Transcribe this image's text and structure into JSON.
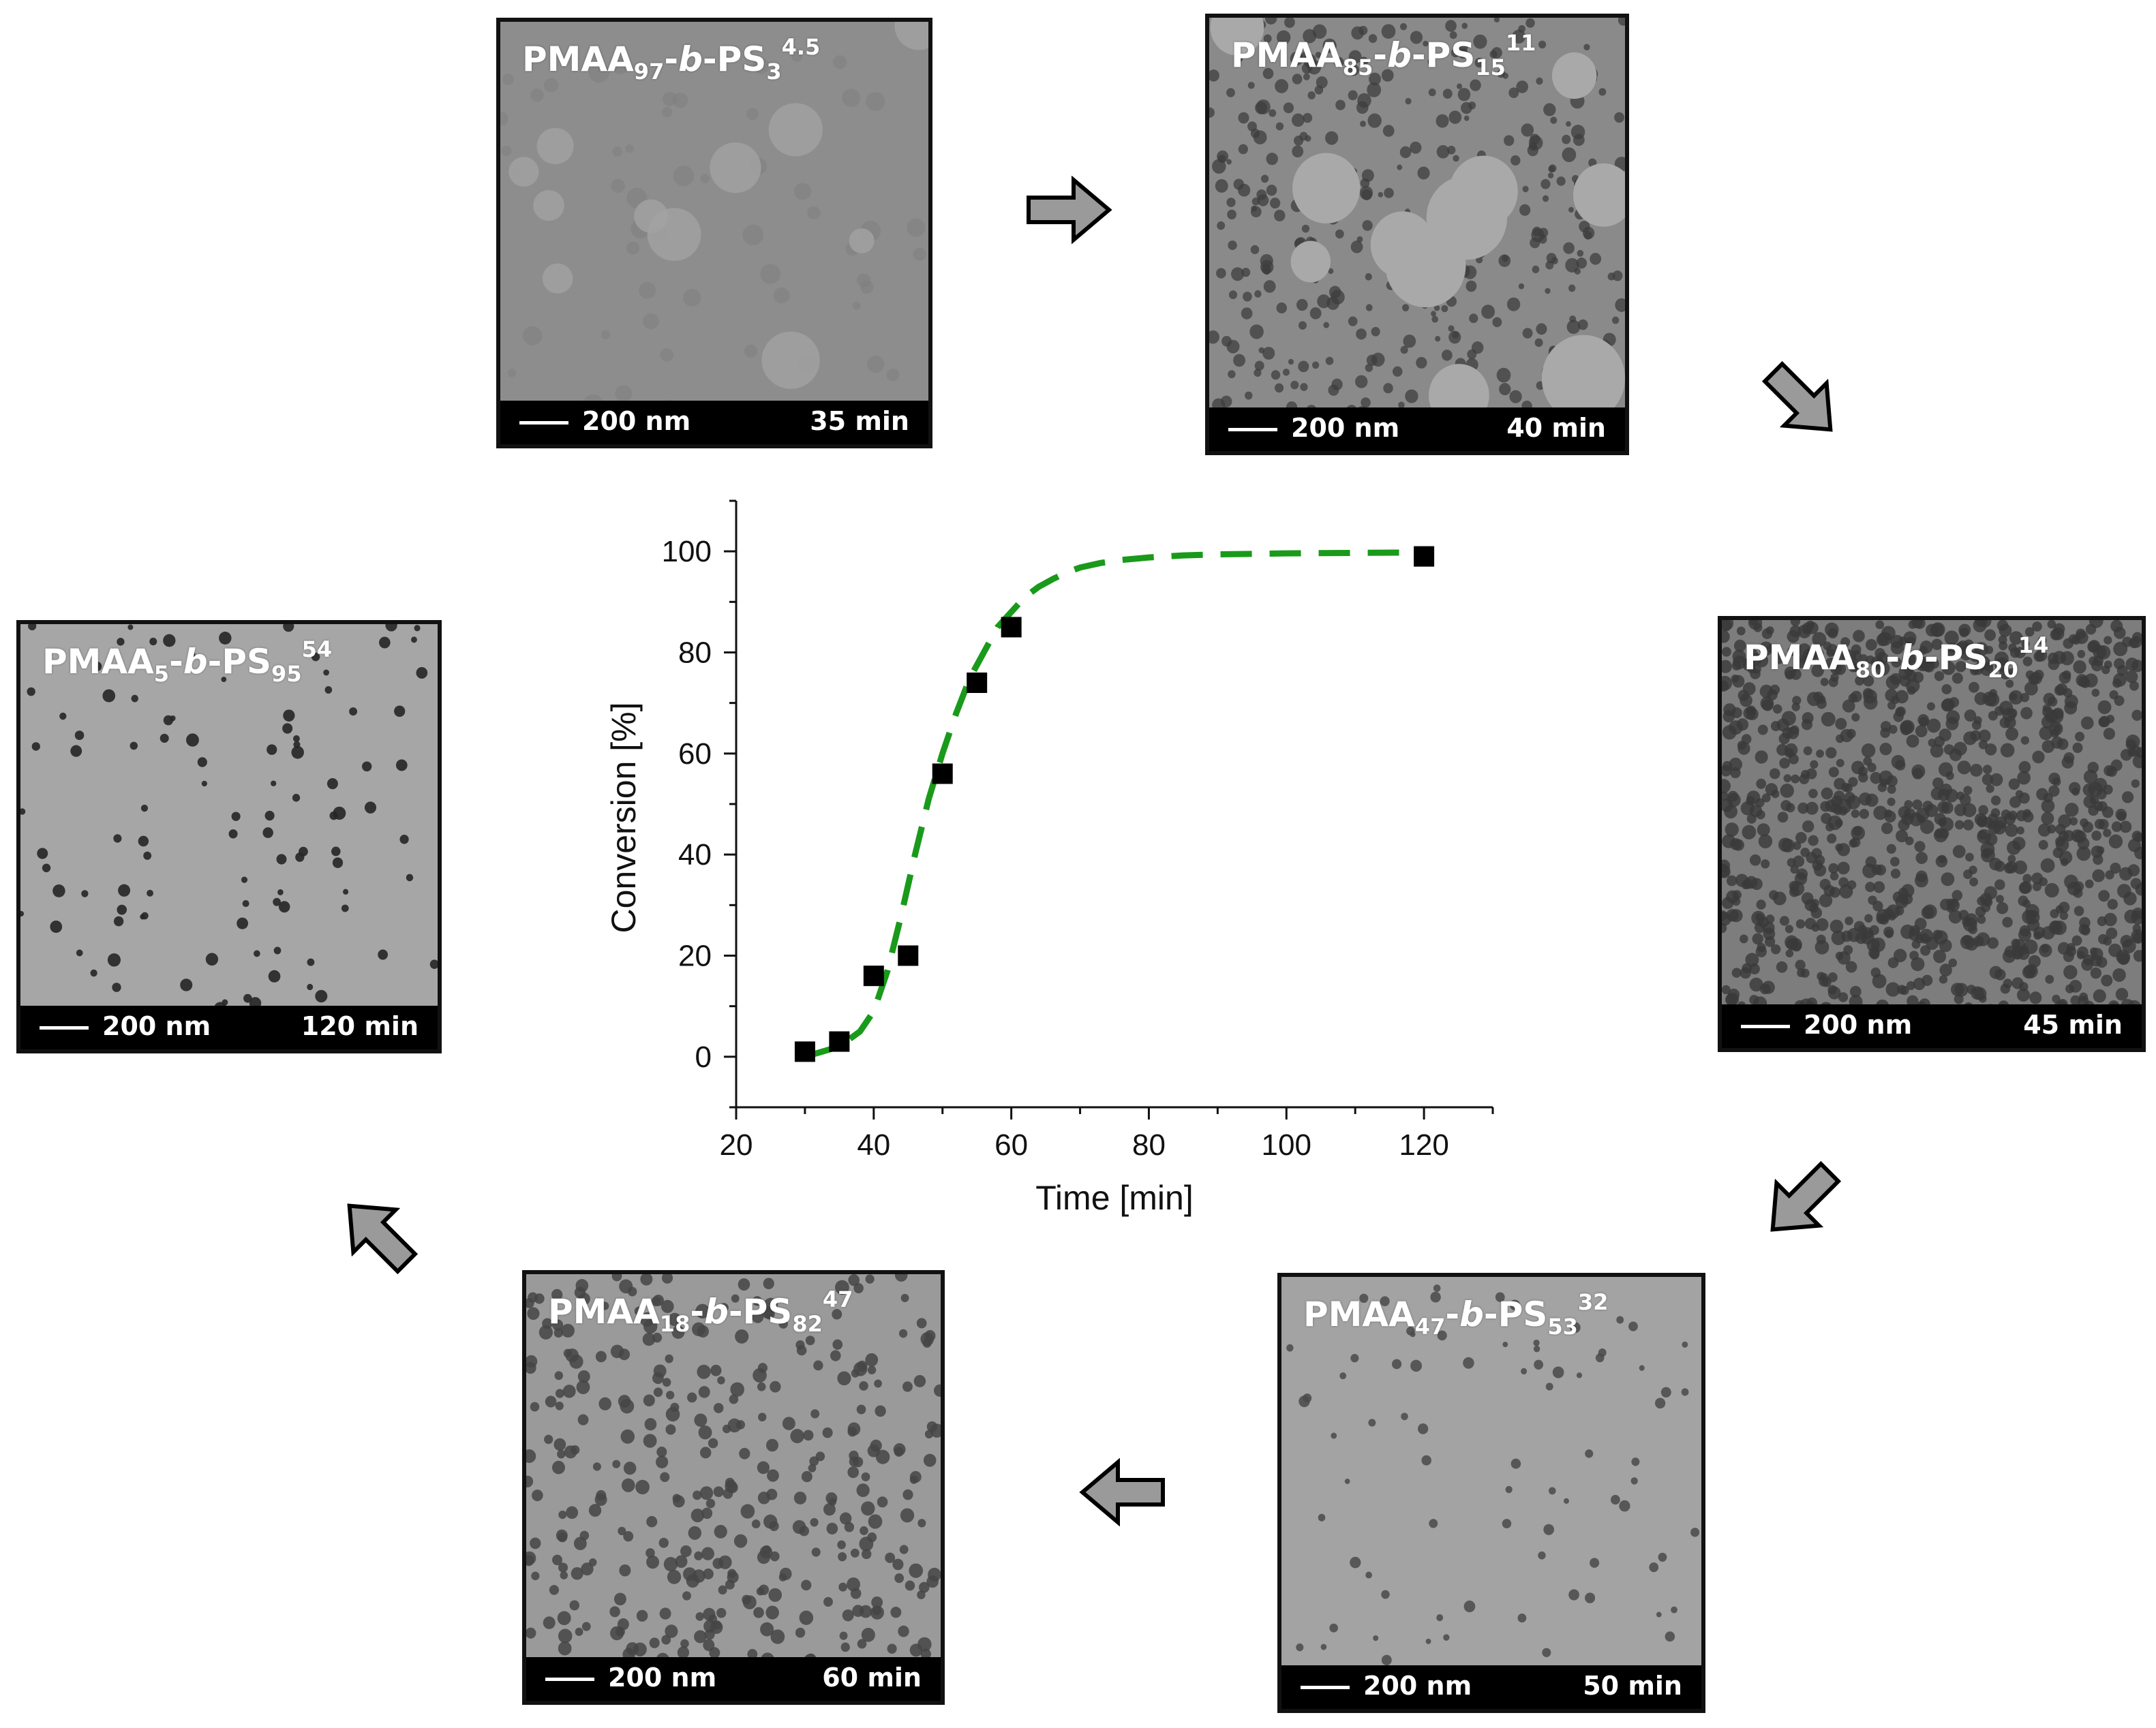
{
  "panels": [
    {
      "id": "p35",
      "pre": "PMAA",
      "s1": "97",
      "b": "b",
      "mid": "-PS",
      "s2": "3",
      "sup": "4.5",
      "scale": "200 nm",
      "time": "35 min",
      "tone": "#8d8d8d"
    },
    {
      "id": "p40",
      "pre": "PMAA",
      "s1": "85",
      "b": "b",
      "mid": "-PS",
      "s2": "15",
      "sup": "11",
      "scale": "200 nm",
      "time": "40 min",
      "tone": "#8a8a8a"
    },
    {
      "id": "p45",
      "pre": "PMAA",
      "s1": "80",
      "b": "b",
      "mid": "-PS",
      "s2": "20",
      "sup": "14",
      "scale": "200 nm",
      "time": "45 min",
      "tone": "#7d7d7d"
    },
    {
      "id": "p50",
      "pre": "PMAA",
      "s1": "47",
      "b": "b",
      "mid": "-PS",
      "s2": "53",
      "sup": "32",
      "scale": "200 nm",
      "time": "50 min",
      "tone": "#a3a3a3"
    },
    {
      "id": "p60",
      "pre": "PMAA",
      "s1": "18",
      "b": "b",
      "mid": "-PS",
      "s2": "82",
      "sup": "47",
      "scale": "200 nm",
      "time": "60 min",
      "tone": "#9a9a9a"
    },
    {
      "id": "p120",
      "pre": "PMAA",
      "s1": "5",
      "b": "b",
      "mid": "-PS",
      "s2": "95",
      "sup": "54",
      "scale": "200 nm",
      "time": "120 min",
      "tone": "#a6a6a6"
    }
  ],
  "chart_data": {
    "type": "scatter",
    "xlabel": "Time [min]",
    "ylabel": "Conversion [%]",
    "xlim": [
      20,
      130
    ],
    "ylim": [
      -10,
      110
    ],
    "xticks": [
      20,
      40,
      60,
      80,
      100,
      120
    ],
    "yticks": [
      0,
      20,
      40,
      60,
      80,
      100
    ],
    "points": {
      "x": [
        30,
        35,
        40,
        45,
        50,
        55,
        60,
        120
      ],
      "y": [
        1,
        3,
        16,
        20,
        56,
        74,
        85,
        99
      ]
    },
    "fit": {
      "style": "dashed",
      "color": "#1a9a1a",
      "x": [
        30,
        35,
        38,
        40,
        42,
        44,
        46,
        48,
        50,
        52,
        54,
        56,
        58,
        60,
        62,
        64,
        66,
        68,
        70,
        73,
        76,
        80,
        85,
        90,
        100,
        110,
        120
      ],
      "y": [
        0,
        2,
        5,
        9,
        17,
        28,
        40,
        51,
        60,
        68,
        75,
        80,
        85,
        88,
        91,
        93,
        94.5,
        95.8,
        96.8,
        97.7,
        98.3,
        98.8,
        99.2,
        99.4,
        99.6,
        99.7,
        99.8
      ]
    },
    "marker_color": "#000000"
  }
}
